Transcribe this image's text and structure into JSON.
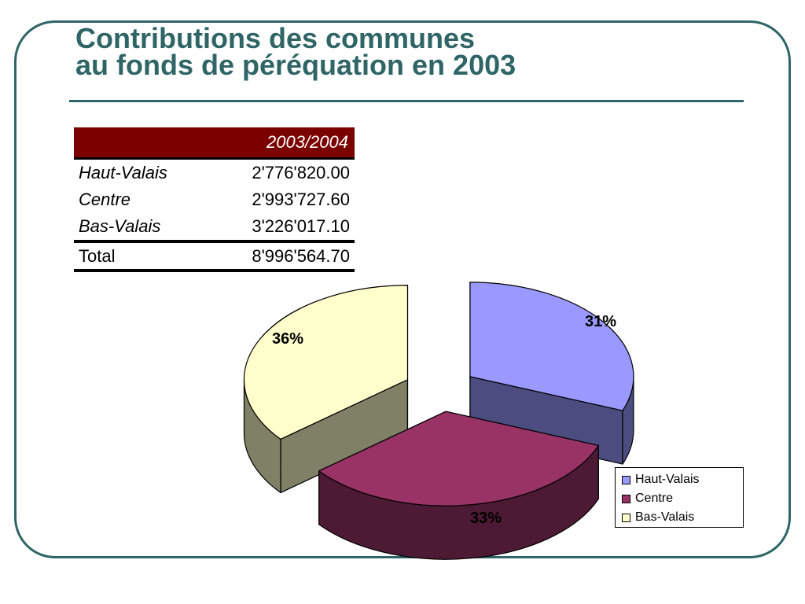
{
  "title": {
    "line1": "Contributions des communes",
    "line2": "au fonds de péréquation en 2003"
  },
  "table": {
    "header": "2003/2004",
    "rows": [
      {
        "label": "Haut-Valais",
        "value": "2'776'820.00"
      },
      {
        "label": "Centre",
        "value": "2'993'727.60"
      },
      {
        "label": "Bas-Valais",
        "value": "3'226'017.10"
      }
    ],
    "total": {
      "label": "Total",
      "value": "8'996'564.70"
    }
  },
  "chart_data": {
    "type": "pie",
    "title": "",
    "categories": [
      "Haut-Valais",
      "Centre",
      "Bas-Valais"
    ],
    "values": [
      2776820.0,
      2993727.6,
      3226017.1
    ],
    "percent_labels": [
      "31%",
      "33%",
      "36%"
    ],
    "colors": [
      "#9999ff",
      "#993366",
      "#ffffcc"
    ],
    "side_colors": [
      "#4c4c80",
      "#4d1a33",
      "#808066"
    ],
    "style": "3d-exploded",
    "legend": {
      "position": "bottom-right",
      "entries": [
        "Haut-Valais",
        "Centre",
        "Bas-Valais"
      ]
    }
  }
}
